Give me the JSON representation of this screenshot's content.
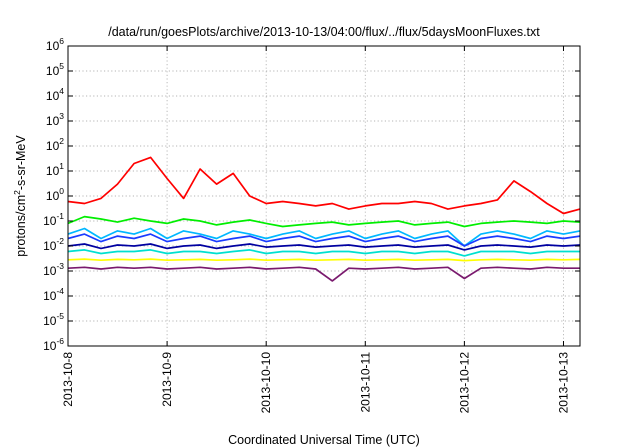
{
  "chart_data": {
    "type": "line",
    "title": "/data/run/goesPlots/archive/2013-10-13/04:00/flux/../flux/5daysMoonFluxes.txt",
    "xlabel": "Coordinated Universal Time (UTC)",
    "ylabel": "protons/cm²-s-sr-MeV",
    "ylabel_parts": {
      "pre": "protons/cm",
      "sup": "2",
      "post": "-s-sr-MeV"
    },
    "yscale": "log",
    "ylim": [
      1e-06,
      1000000.0
    ],
    "xlim": [
      "2013-10-08 00:00",
      "2013-10-13 04:00"
    ],
    "x_ticks": [
      "2013-10-8",
      "2013-10-9",
      "2013-10-10",
      "2013-10-11",
      "2013-10-12",
      "2013-10-13"
    ],
    "y_ticks": [
      {
        "base": "10",
        "exp": "6"
      },
      {
        "base": "10",
        "exp": "5"
      },
      {
        "base": "10",
        "exp": "4"
      },
      {
        "base": "10",
        "exp": "3"
      },
      {
        "base": "10",
        "exp": "2"
      },
      {
        "base": "10",
        "exp": "1"
      },
      {
        "base": "10",
        "exp": "0"
      },
      {
        "base": "10",
        "exp": "-1"
      },
      {
        "base": "10",
        "exp": "-2"
      },
      {
        "base": "10",
        "exp": "-3"
      },
      {
        "base": "10",
        "exp": "-4"
      },
      {
        "base": "10",
        "exp": "-5"
      },
      {
        "base": "10",
        "exp": "-6"
      }
    ],
    "grid": true,
    "time_step_hours": 4,
    "x": [
      "2013-10-08 00:00",
      "2013-10-08 04:00",
      "2013-10-08 08:00",
      "2013-10-08 12:00",
      "2013-10-08 16:00",
      "2013-10-08 20:00",
      "2013-10-09 00:00",
      "2013-10-09 04:00",
      "2013-10-09 08:00",
      "2013-10-09 12:00",
      "2013-10-09 16:00",
      "2013-10-09 20:00",
      "2013-10-10 00:00",
      "2013-10-10 04:00",
      "2013-10-10 08:00",
      "2013-10-10 12:00",
      "2013-10-10 16:00",
      "2013-10-10 20:00",
      "2013-10-11 00:00",
      "2013-10-11 04:00",
      "2013-10-11 08:00",
      "2013-10-11 12:00",
      "2013-10-11 16:00",
      "2013-10-11 20:00",
      "2013-10-12 00:00",
      "2013-10-12 04:00",
      "2013-10-12 08:00",
      "2013-10-12 12:00",
      "2013-10-12 16:00",
      "2013-10-12 20:00",
      "2013-10-13 00:00",
      "2013-10-13 04:00"
    ],
    "series": [
      {
        "color": "#ff0000",
        "values": [
          0.6,
          0.5,
          0.8,
          3,
          20,
          35,
          5,
          0.8,
          12,
          3,
          8,
          1,
          0.5,
          0.6,
          0.5,
          0.4,
          0.5,
          0.3,
          0.4,
          0.5,
          0.5,
          0.6,
          0.5,
          0.3,
          0.4,
          0.5,
          0.7,
          4,
          1.5,
          0.5,
          0.2,
          0.3
        ]
      },
      {
        "color": "#00ee00",
        "values": [
          0.08,
          0.15,
          0.12,
          0.09,
          0.13,
          0.1,
          0.08,
          0.12,
          0.1,
          0.07,
          0.09,
          0.11,
          0.08,
          0.06,
          0.07,
          0.08,
          0.09,
          0.07,
          0.08,
          0.09,
          0.1,
          0.07,
          0.08,
          0.09,
          0.06,
          0.08,
          0.09,
          0.1,
          0.09,
          0.08,
          0.1,
          0.09
        ]
      },
      {
        "color": "#00b7ff",
        "values": [
          0.03,
          0.05,
          0.02,
          0.04,
          0.03,
          0.05,
          0.02,
          0.04,
          0.03,
          0.02,
          0.04,
          0.03,
          0.02,
          0.03,
          0.04,
          0.02,
          0.03,
          0.04,
          0.02,
          0.03,
          0.04,
          0.02,
          0.03,
          0.04,
          0.01,
          0.03,
          0.04,
          0.03,
          0.02,
          0.04,
          0.03,
          0.04
        ]
      },
      {
        "color": "#1a3cff",
        "values": [
          0.02,
          0.03,
          0.015,
          0.025,
          0.02,
          0.03,
          0.015,
          0.02,
          0.025,
          0.015,
          0.02,
          0.025,
          0.015,
          0.02,
          0.025,
          0.015,
          0.02,
          0.025,
          0.015,
          0.02,
          0.025,
          0.015,
          0.02,
          0.025,
          0.01,
          0.02,
          0.025,
          0.02,
          0.015,
          0.025,
          0.02,
          0.025
        ]
      },
      {
        "color": "#0000a0",
        "values": [
          0.01,
          0.012,
          0.008,
          0.011,
          0.01,
          0.012,
          0.008,
          0.01,
          0.011,
          0.008,
          0.01,
          0.012,
          0.009,
          0.01,
          0.011,
          0.009,
          0.01,
          0.011,
          0.009,
          0.01,
          0.011,
          0.009,
          0.01,
          0.011,
          0.007,
          0.01,
          0.011,
          0.01,
          0.009,
          0.011,
          0.01,
          0.011
        ]
      },
      {
        "color": "#00e0d0",
        "values": [
          0.006,
          0.007,
          0.005,
          0.006,
          0.006,
          0.007,
          0.005,
          0.006,
          0.006,
          0.005,
          0.006,
          0.007,
          0.005,
          0.006,
          0.006,
          0.005,
          0.006,
          0.006,
          0.005,
          0.006,
          0.006,
          0.005,
          0.006,
          0.006,
          0.004,
          0.006,
          0.006,
          0.006,
          0.005,
          0.006,
          0.006,
          0.006
        ]
      },
      {
        "color": "#ffff00",
        "values": [
          0.0028,
          0.003,
          0.0027,
          0.0029,
          0.0028,
          0.003,
          0.0027,
          0.0028,
          0.0029,
          0.0027,
          0.0028,
          0.003,
          0.0027,
          0.0028,
          0.0029,
          0.0027,
          0.0028,
          0.0029,
          0.0027,
          0.0028,
          0.0029,
          0.0027,
          0.0028,
          0.0029,
          0.0026,
          0.0028,
          0.0029,
          0.0028,
          0.0027,
          0.0029,
          0.0028,
          0.0029
        ]
      },
      {
        "color": "#7a1a6e",
        "values": [
          0.0013,
          0.0014,
          0.0012,
          0.0014,
          0.0013,
          0.0014,
          0.0012,
          0.0013,
          0.0014,
          0.0012,
          0.0013,
          0.0014,
          0.0012,
          0.0013,
          0.0014,
          0.0012,
          0.0004,
          0.0013,
          0.0012,
          0.0013,
          0.0014,
          0.0012,
          0.0013,
          0.0014,
          0.0005,
          0.0013,
          0.0014,
          0.0013,
          0.0012,
          0.0014,
          0.0013,
          0.0013
        ]
      }
    ]
  }
}
